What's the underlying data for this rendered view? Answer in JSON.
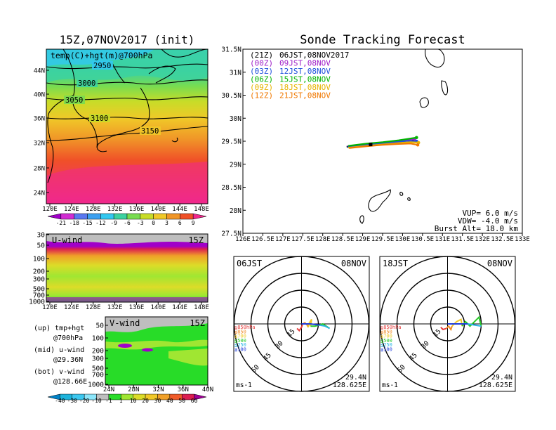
{
  "left_panel": {
    "title": "15Z,07NOV2017 (init)",
    "map_label": "temp(C)+hgt(m)@700hPa",
    "map_lon_ticks": [
      "120E",
      "124E",
      "128E",
      "132E",
      "136E",
      "140E",
      "144E",
      "148E"
    ],
    "map_lat_ticks": [
      "44N",
      "40N",
      "36N",
      "32N",
      "28N",
      "24N"
    ],
    "contour_labels": [
      "2950",
      "3000",
      "3050",
      "3100",
      "3150"
    ],
    "temp_colorbar": {
      "labels": [
        "-21",
        "-18",
        "-15",
        "-12",
        "-9",
        "-6",
        "-3",
        "0",
        "3",
        "6",
        "9"
      ],
      "colors": [
        "#a000c8",
        "#d22dd2",
        "#5a78f0",
        "#3ca0f0",
        "#32c8f0",
        "#3cd2a0",
        "#78dc50",
        "#c8dc28",
        "#f0c828",
        "#f09628",
        "#f05028",
        "#f0288c"
      ]
    },
    "uwind_label": "U-wind",
    "uwind_time": "15Z",
    "uwind_y_ticks": [
      "30",
      "50",
      "100",
      "200",
      "300",
      "500",
      "700",
      "1000"
    ],
    "uwind_x_ticks": [
      "120E",
      "124E",
      "128E",
      "132E",
      "136E",
      "140E",
      "144E",
      "148E"
    ],
    "vwind_label": "V-wind",
    "vwind_time": "15Z",
    "vwind_y_ticks": [
      "50",
      "100",
      "200",
      "300",
      "500",
      "700",
      "1000"
    ],
    "vwind_x_ticks": [
      "24N",
      "28N",
      "32N",
      "36N",
      "40N"
    ],
    "notes": [
      [
        "(up) tmp+hgt",
        "@700hPa"
      ],
      [
        "(mid) u-wind",
        "@29.36N"
      ],
      [
        "(bot) v-wind",
        "@128.66E"
      ]
    ],
    "wind_colorbar": {
      "labels": [
        "-40",
        "-30",
        "-20",
        "-10",
        "-1",
        "1",
        "10",
        "20",
        "30",
        "40",
        "50",
        "60"
      ],
      "colors": [
        "#0082c8",
        "#1eb4dc",
        "#3cc8f0",
        "#8ce6fa",
        "#bebebe",
        "#28dc28",
        "#a0e632",
        "#dcdc28",
        "#f0c828",
        "#f0a028",
        "#f05a28",
        "#dc1e50",
        "#a00096"
      ]
    }
  },
  "main": {
    "title": "Sonde Tracking Forecast",
    "lat_ticks": [
      "31.5N",
      "31N",
      "30.5N",
      "30N",
      "29.5N",
      "29N",
      "28.5N",
      "28N",
      "27.5N"
    ],
    "lon_ticks": [
      "126E",
      "126.5E",
      "127E",
      "127.5E",
      "128E",
      "128.5E",
      "129E",
      "129.5E",
      "130E",
      "130.5E",
      "131E",
      "131.5E",
      "132E",
      "132.5E",
      "133E"
    ],
    "legend": [
      {
        "code": "(21Z)",
        "label": "06JST,08NOV2017",
        "color": "#000000"
      },
      {
        "code": "(00Z)",
        "label": "09JST,08NOV",
        "color": "#a020c8"
      },
      {
        "code": "(03Z)",
        "label": "12JST,08NOV",
        "color": "#1e50dc"
      },
      {
        "code": "(06Z)",
        "label": "15JST,08NOV",
        "color": "#00b400"
      },
      {
        "code": "(09Z)",
        "label": "18JST,08NOV",
        "color": "#e6b400"
      },
      {
        "code": "(12Z)",
        "label": "21JST,08NOV",
        "color": "#f07800"
      }
    ],
    "info": [
      "VUP= 6.0 m/s",
      "VDW= -4.0 m/s",
      "Burst Alt= 18.0 km"
    ],
    "chart_data": {
      "type": "line",
      "xlabel": "",
      "ylabel": "",
      "xlim": [
        126,
        133
      ],
      "ylim": [
        27.5,
        31.5
      ],
      "series": [
        {
          "name": "(21Z) 06JST,08NOV2017",
          "color": "#000000",
          "points": [
            [
              128.6,
              29.38
            ],
            [
              129.0,
              29.42
            ],
            [
              129.3,
              29.44
            ],
            [
              129.7,
              29.47
            ],
            [
              130.0,
              29.5
            ],
            [
              130.25,
              29.52
            ]
          ]
        },
        {
          "name": "(00Z) 09JST,08NOV",
          "color": "#a020c8",
          "points": [
            [
              128.62,
              29.39
            ],
            [
              129.0,
              29.43
            ],
            [
              129.4,
              29.46
            ],
            [
              129.8,
              29.49
            ],
            [
              130.1,
              29.52
            ],
            [
              130.3,
              29.55
            ]
          ]
        },
        {
          "name": "(03Z) 12JST,08NOV",
          "color": "#1e50dc",
          "points": [
            [
              128.62,
              29.37
            ],
            [
              129.0,
              29.41
            ],
            [
              129.4,
              29.45
            ],
            [
              129.8,
              29.48
            ],
            [
              130.15,
              29.51
            ],
            [
              130.35,
              29.5
            ]
          ]
        },
        {
          "name": "(06Z) 15JST,08NOV",
          "color": "#00b400",
          "points": [
            [
              128.64,
              29.4
            ],
            [
              129.1,
              29.45
            ],
            [
              129.5,
              29.48
            ],
            [
              129.9,
              29.52
            ],
            [
              130.2,
              29.56
            ],
            [
              130.35,
              29.58
            ]
          ]
        },
        {
          "name": "(09Z) 18JST,08NOV",
          "color": "#e6b400",
          "points": [
            [
              128.64,
              29.36
            ],
            [
              129.1,
              29.4
            ],
            [
              129.5,
              29.43
            ],
            [
              129.9,
              29.46
            ],
            [
              130.2,
              29.48
            ],
            [
              130.4,
              29.47
            ]
          ]
        },
        {
          "name": "(12Z) 21JST,08NOV",
          "color": "#f07800",
          "points": [
            [
              128.66,
              29.35
            ],
            [
              129.1,
              29.39
            ],
            [
              129.5,
              29.42
            ],
            [
              129.9,
              29.44
            ],
            [
              130.2,
              29.45
            ],
            [
              130.38,
              29.42
            ]
          ]
        }
      ]
    }
  },
  "hodographs": [
    {
      "time": "06JST",
      "date": "08NOV",
      "lat": "29.4N",
      "lon": "128.625E",
      "unit": "ms-1",
      "ring_labels": [
        "15",
        "30",
        "45",
        "60"
      ],
      "levels": [
        {
          "label": "≧850hPa",
          "color": "#e63c3c"
        },
        {
          "label": "≦850",
          "color": "#f08c28"
        },
        {
          "label": "≦700",
          "color": "#f0c828"
        },
        {
          "label": "≦500",
          "color": "#28c828"
        },
        {
          "label": "≦250",
          "color": "#28b4e6"
        },
        {
          "label": "≦100",
          "color": "#1e3cdc"
        }
      ],
      "chart_data": {
        "type": "line",
        "xlabel": "",
        "ylabel": "",
        "segments": [
          {
            "level": "≧850hPa",
            "color": "#e63c3c",
            "points": [
              [
                -4,
                -4
              ],
              [
                -2,
                -6
              ],
              [
                0,
                -3
              ],
              [
                1,
                0
              ]
            ]
          },
          {
            "level": "≦850",
            "color": "#f08c28",
            "points": [
              [
                1,
                0
              ],
              [
                3,
                1
              ],
              [
                5,
                -1
              ],
              [
                6,
                -3
              ]
            ]
          },
          {
            "level": "≦700",
            "color": "#f0c828",
            "points": [
              [
                6,
                -3
              ],
              [
                7,
                1
              ],
              [
                9,
                4
              ],
              [
                8,
                -2
              ]
            ]
          },
          {
            "level": "≦500",
            "color": "#28c828",
            "points": [
              [
                8,
                -2
              ],
              [
                12,
                -2
              ],
              [
                16,
                -1
              ],
              [
                19,
                0
              ],
              [
                22,
                -2
              ],
              [
                25,
                -4
              ]
            ]
          },
          {
            "level": "≦250",
            "color": "#28b4e6",
            "points": [
              [
                25,
                -4
              ],
              [
                21,
                -2
              ],
              [
                16,
                -1
              ]
            ]
          },
          {
            "level": "≦100",
            "color": "#1e3cdc",
            "points": [
              [
                16,
                -1
              ],
              [
                8,
                0
              ],
              [
                0,
                0
              ]
            ]
          }
        ]
      }
    },
    {
      "time": "18JST",
      "date": "08NOV",
      "lat": "29.4N",
      "lon": "128.625E",
      "unit": "ms-1",
      "ring_labels": [
        "15",
        "30",
        "45",
        "60"
      ],
      "levels": [
        {
          "label": "≧850hPa",
          "color": "#e63c3c"
        },
        {
          "label": "≦850",
          "color": "#f08c28"
        },
        {
          "label": "≦700",
          "color": "#f0c828"
        },
        {
          "label": "≦500",
          "color": "#28c828"
        },
        {
          "label": "≦250",
          "color": "#28b4e6"
        },
        {
          "label": "≦100",
          "color": "#1e3cdc"
        }
      ],
      "chart_data": {
        "type": "line",
        "xlabel": "",
        "ylabel": "",
        "segments": [
          {
            "level": "≧850hPa",
            "color": "#e63c3c",
            "points": [
              [
                -6,
                -3
              ],
              [
                -4,
                -5
              ],
              [
                -1,
                -4
              ]
            ]
          },
          {
            "level": "≦850",
            "color": "#f08c28",
            "points": [
              [
                -1,
                -4
              ],
              [
                1,
                -2
              ],
              [
                3,
                -5
              ],
              [
                4,
                -2
              ]
            ]
          },
          {
            "level": "≦700",
            "color": "#f0c828",
            "points": [
              [
                4,
                -2
              ],
              [
                8,
                2
              ],
              [
                12,
                4
              ],
              [
                13,
                -2
              ]
            ]
          },
          {
            "level": "≦500",
            "color": "#28c828",
            "points": [
              [
                13,
                -2
              ],
              [
                16,
                2
              ],
              [
                20,
                -2
              ],
              [
                25,
                3
              ],
              [
                28,
                6
              ],
              [
                30,
                -2
              ]
            ]
          },
          {
            "level": "≦250",
            "color": "#28b4e6",
            "points": [
              [
                30,
                -2
              ],
              [
                24,
                -1
              ],
              [
                18,
                0
              ]
            ]
          },
          {
            "level": "≦100",
            "color": "#1e3cdc",
            "points": [
              [
                18,
                0
              ],
              [
                8,
                0
              ],
              [
                0,
                0
              ]
            ]
          }
        ]
      }
    }
  ]
}
